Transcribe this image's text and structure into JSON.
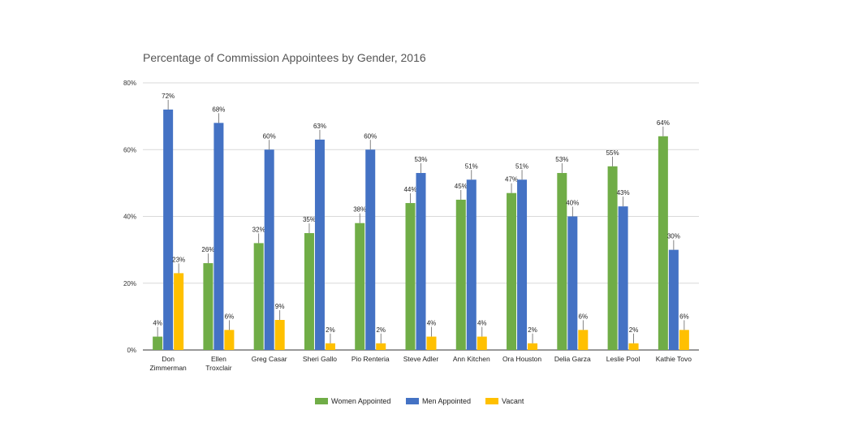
{
  "title": "Percentage of Commission Appointees by Gender, 2016",
  "colors": {
    "women": "#70ad47",
    "men": "#4472c4",
    "vacant": "#ffc000"
  },
  "chart_data": {
    "type": "bar",
    "title": "Percentage of Commission Appointees by Gender, 2016",
    "xlabel": "",
    "ylabel": "",
    "ylim": [
      0,
      80
    ],
    "yticks": [
      "0%",
      "20%",
      "40%",
      "60%",
      "80%"
    ],
    "grid": true,
    "legend_position": "bottom",
    "categories": [
      [
        "Don",
        "Zimmerman"
      ],
      [
        "Ellen",
        "Troxclair"
      ],
      [
        "Greg Casar"
      ],
      [
        "Sheri Gallo"
      ],
      [
        "Pio Renteria"
      ],
      [
        "Steve Adler"
      ],
      [
        "Ann Kitchen"
      ],
      [
        "Ora Houston"
      ],
      [
        "Delia Garza"
      ],
      [
        "Leslie Pool"
      ],
      [
        "Kathie Tovo"
      ]
    ],
    "series": [
      {
        "name": "Women Appointed",
        "color": "#70ad47",
        "values": [
          4,
          26,
          32,
          35,
          38,
          44,
          45,
          47,
          53,
          55,
          64
        ],
        "labels": [
          "4%",
          "26%",
          "32%",
          "35%",
          "38%",
          "44%",
          "45%",
          "47%",
          "53%",
          "55%",
          "64%"
        ]
      },
      {
        "name": "Men Appointed",
        "color": "#4472c4",
        "values": [
          72,
          68,
          60,
          63,
          60,
          53,
          51,
          51,
          40,
          43,
          30
        ],
        "labels": [
          "72%",
          "68%",
          "60%",
          "63%",
          "60%",
          "53%",
          "51%",
          "51%",
          "40%",
          "43%",
          "30%"
        ]
      },
      {
        "name": "Vacant",
        "color": "#ffc000",
        "values": [
          23,
          6,
          9,
          2,
          2,
          4,
          4,
          2,
          6,
          2,
          6
        ],
        "labels": [
          "23%",
          "6%",
          "9%",
          "2%",
          "2%",
          "4%",
          "4%",
          "2%",
          "6%",
          "2%",
          "6%"
        ]
      }
    ]
  }
}
